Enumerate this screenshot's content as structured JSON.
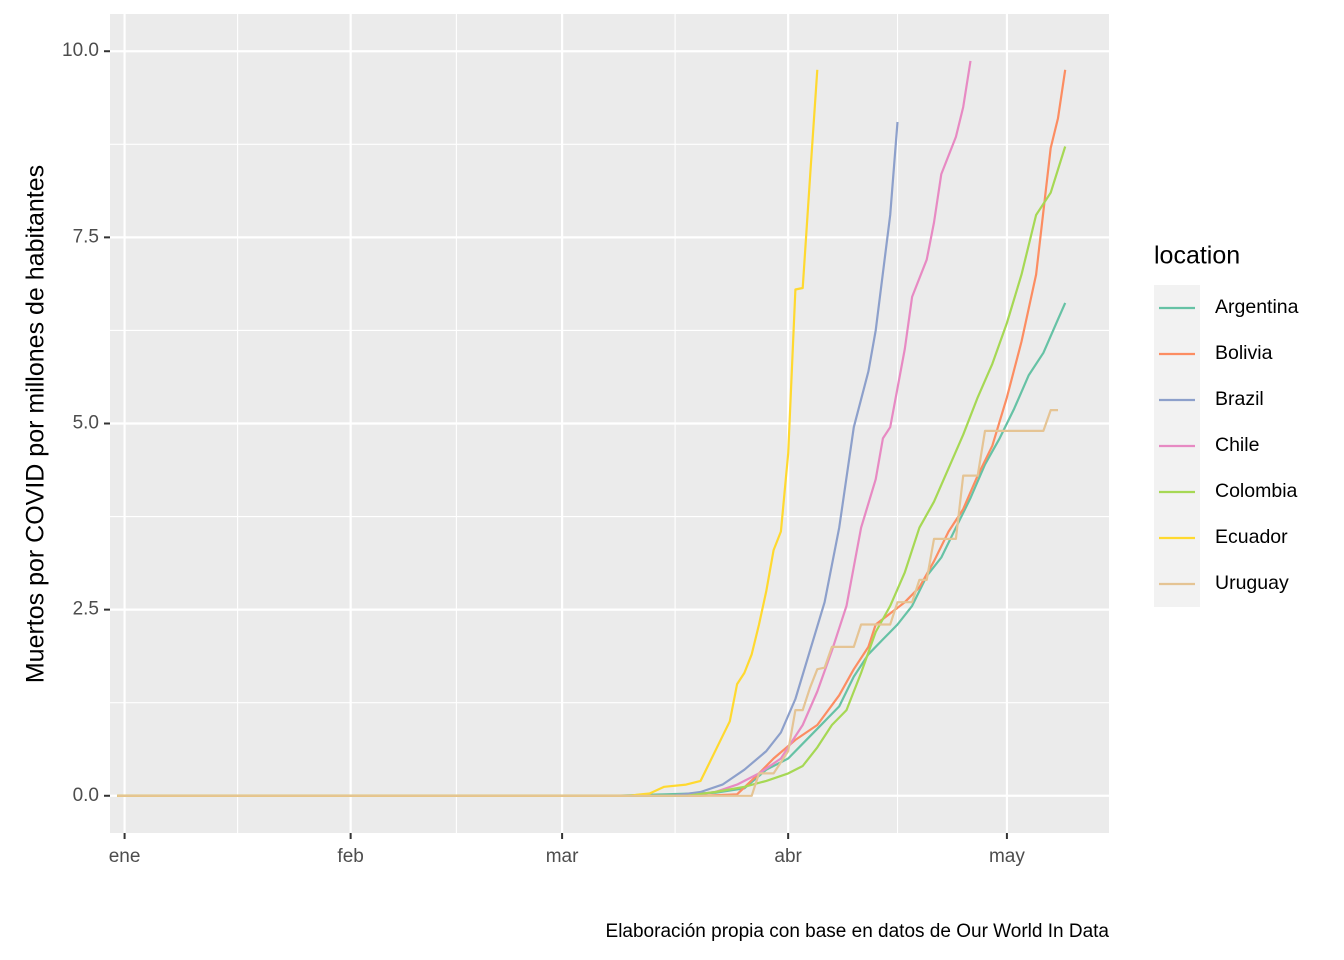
{
  "chart_data": {
    "type": "line",
    "title": "",
    "xlabel": "",
    "ylabel": "Muertos por COVID por millones de habitantes",
    "caption": "Elaboración propia con base en datos de Our World In Data",
    "legend_title": "location",
    "legend_position": "right",
    "grid": true,
    "x_tick_labels": [
      "ene",
      "feb",
      "mar",
      "abr",
      "may"
    ],
    "x_ticks": [
      "2020-01-01",
      "2020-02-01",
      "2020-03-01",
      "2020-04-01",
      "2020-05-01"
    ],
    "xlim": [
      "2019-12-30",
      "2020-05-15"
    ],
    "y_tick_labels": [
      "0.0",
      "2.5",
      "5.0",
      "7.5",
      "10.0"
    ],
    "y_ticks": [
      0,
      2.5,
      5,
      7.5,
      10
    ],
    "ylim": [
      -0.5,
      10.5
    ],
    "series": [
      {
        "name": "Argentina",
        "color": "#66c2a5",
        "points": [
          [
            "2019-12-31",
            0
          ],
          [
            "2020-03-08",
            0
          ],
          [
            "2020-03-15",
            0.02
          ],
          [
            "2020-03-22",
            0.04
          ],
          [
            "2020-03-26",
            0.1
          ],
          [
            "2020-03-29",
            0.35
          ],
          [
            "2020-04-01",
            0.5
          ],
          [
            "2020-04-03",
            0.7
          ],
          [
            "2020-04-05",
            0.9
          ],
          [
            "2020-04-08",
            1.2
          ],
          [
            "2020-04-10",
            1.6
          ],
          [
            "2020-04-12",
            1.9
          ],
          [
            "2020-04-14",
            2.1
          ],
          [
            "2020-04-16",
            2.3
          ],
          [
            "2020-04-18",
            2.55
          ],
          [
            "2020-04-20",
            2.95
          ],
          [
            "2020-04-22",
            3.2
          ],
          [
            "2020-04-24",
            3.6
          ],
          [
            "2020-04-26",
            4.0
          ],
          [
            "2020-04-28",
            4.45
          ],
          [
            "2020-04-30",
            4.8
          ],
          [
            "2020-05-02",
            5.2
          ],
          [
            "2020-05-04",
            5.65
          ],
          [
            "2020-05-06",
            5.95
          ],
          [
            "2020-05-08",
            6.4
          ],
          [
            "2020-05-09",
            6.62
          ]
        ]
      },
      {
        "name": "Bolivia",
        "color": "#fc8d62",
        "points": [
          [
            "2019-12-31",
            0
          ],
          [
            "2020-03-20",
            0
          ],
          [
            "2020-03-25",
            0.02
          ],
          [
            "2020-03-28",
            0.3
          ],
          [
            "2020-03-30",
            0.5
          ],
          [
            "2020-04-02",
            0.75
          ],
          [
            "2020-04-05",
            0.95
          ],
          [
            "2020-04-08",
            1.35
          ],
          [
            "2020-04-10",
            1.7
          ],
          [
            "2020-04-12",
            2.0
          ],
          [
            "2020-04-13",
            2.3
          ],
          [
            "2020-04-15",
            2.45
          ],
          [
            "2020-04-17",
            2.6
          ],
          [
            "2020-04-19",
            2.8
          ],
          [
            "2020-04-21",
            3.15
          ],
          [
            "2020-04-23",
            3.55
          ],
          [
            "2020-04-25",
            3.85
          ],
          [
            "2020-04-27",
            4.3
          ],
          [
            "2020-04-29",
            4.7
          ],
          [
            "2020-05-01",
            5.35
          ],
          [
            "2020-05-03",
            6.1
          ],
          [
            "2020-05-05",
            7.0
          ],
          [
            "2020-05-07",
            8.7
          ],
          [
            "2020-05-08",
            9.1
          ],
          [
            "2020-05-09",
            9.75
          ]
        ]
      },
      {
        "name": "Brazil",
        "color": "#8da0cb",
        "points": [
          [
            "2019-12-31",
            0
          ],
          [
            "2020-03-16",
            0
          ],
          [
            "2020-03-20",
            0.05
          ],
          [
            "2020-03-23",
            0.15
          ],
          [
            "2020-03-26",
            0.35
          ],
          [
            "2020-03-29",
            0.6
          ],
          [
            "2020-03-31",
            0.85
          ],
          [
            "2020-04-02",
            1.3
          ],
          [
            "2020-04-04",
            1.95
          ],
          [
            "2020-04-06",
            2.6
          ],
          [
            "2020-04-08",
            3.6
          ],
          [
            "2020-04-10",
            4.95
          ],
          [
            "2020-04-12",
            5.7
          ],
          [
            "2020-04-13",
            6.25
          ],
          [
            "2020-04-15",
            7.8
          ],
          [
            "2020-04-16",
            9.05
          ]
        ]
      },
      {
        "name": "Chile",
        "color": "#e78ac3",
        "points": [
          [
            "2019-12-31",
            0
          ],
          [
            "2020-03-18",
            0
          ],
          [
            "2020-03-22",
            0.05
          ],
          [
            "2020-03-25",
            0.15
          ],
          [
            "2020-03-28",
            0.3
          ],
          [
            "2020-03-31",
            0.5
          ],
          [
            "2020-04-03",
            0.95
          ],
          [
            "2020-04-05",
            1.4
          ],
          [
            "2020-04-07",
            1.95
          ],
          [
            "2020-04-09",
            2.55
          ],
          [
            "2020-04-11",
            3.6
          ],
          [
            "2020-04-13",
            4.25
          ],
          [
            "2020-04-14",
            4.8
          ],
          [
            "2020-04-15",
            4.95
          ],
          [
            "2020-04-17",
            6.0
          ],
          [
            "2020-04-18",
            6.7
          ],
          [
            "2020-04-20",
            7.2
          ],
          [
            "2020-04-21",
            7.7
          ],
          [
            "2020-04-22",
            8.35
          ],
          [
            "2020-04-24",
            8.85
          ],
          [
            "2020-04-25",
            9.25
          ],
          [
            "2020-04-26",
            9.87
          ]
        ]
      },
      {
        "name": "Colombia",
        "color": "#a6d854",
        "points": [
          [
            "2019-12-31",
            0
          ],
          [
            "2020-03-18",
            0
          ],
          [
            "2020-03-22",
            0.05
          ],
          [
            "2020-03-26",
            0.12
          ],
          [
            "2020-03-29",
            0.2
          ],
          [
            "2020-04-01",
            0.3
          ],
          [
            "2020-04-03",
            0.4
          ],
          [
            "2020-04-05",
            0.65
          ],
          [
            "2020-04-07",
            0.95
          ],
          [
            "2020-04-09",
            1.15
          ],
          [
            "2020-04-11",
            1.65
          ],
          [
            "2020-04-13",
            2.2
          ],
          [
            "2020-04-15",
            2.55
          ],
          [
            "2020-04-17",
            3.0
          ],
          [
            "2020-04-19",
            3.6
          ],
          [
            "2020-04-21",
            3.95
          ],
          [
            "2020-04-23",
            4.4
          ],
          [
            "2020-04-25",
            4.85
          ],
          [
            "2020-04-27",
            5.35
          ],
          [
            "2020-04-29",
            5.8
          ],
          [
            "2020-05-01",
            6.35
          ],
          [
            "2020-05-03",
            7.0
          ],
          [
            "2020-05-05",
            7.8
          ],
          [
            "2020-05-07",
            8.1
          ],
          [
            "2020-05-09",
            8.72
          ]
        ]
      },
      {
        "name": "Ecuador",
        "color": "#ffd92f",
        "points": [
          [
            "2019-12-31",
            0
          ],
          [
            "2020-03-10",
            0
          ],
          [
            "2020-03-13",
            0.03
          ],
          [
            "2020-03-15",
            0.12
          ],
          [
            "2020-03-18",
            0.15
          ],
          [
            "2020-03-20",
            0.2
          ],
          [
            "2020-03-21",
            0.4
          ],
          [
            "2020-03-23",
            0.8
          ],
          [
            "2020-03-24",
            1.0
          ],
          [
            "2020-03-25",
            1.5
          ],
          [
            "2020-03-26",
            1.65
          ],
          [
            "2020-03-27",
            1.9
          ],
          [
            "2020-03-28",
            2.3
          ],
          [
            "2020-03-29",
            2.75
          ],
          [
            "2020-03-30",
            3.3
          ],
          [
            "2020-03-31",
            3.55
          ],
          [
            "2020-04-01",
            4.6
          ],
          [
            "2020-04-02",
            6.8
          ],
          [
            "2020-04-03",
            6.82
          ],
          [
            "2020-04-04",
            8.3
          ],
          [
            "2020-04-05",
            9.75
          ]
        ]
      },
      {
        "name": "Uruguay",
        "color": "#e5c494",
        "points": [
          [
            "2019-12-31",
            0
          ],
          [
            "2020-03-27",
            0
          ],
          [
            "2020-03-28",
            0.3
          ],
          [
            "2020-03-30",
            0.3
          ],
          [
            "2020-04-01",
            0.6
          ],
          [
            "2020-04-02",
            1.15
          ],
          [
            "2020-04-03",
            1.15
          ],
          [
            "2020-04-04",
            1.45
          ],
          [
            "2020-04-05",
            1.7
          ],
          [
            "2020-04-06",
            1.72
          ],
          [
            "2020-04-07",
            2.0
          ],
          [
            "2020-04-10",
            2.0
          ],
          [
            "2020-04-11",
            2.3
          ],
          [
            "2020-04-15",
            2.3
          ],
          [
            "2020-04-16",
            2.6
          ],
          [
            "2020-04-18",
            2.6
          ],
          [
            "2020-04-19",
            2.9
          ],
          [
            "2020-04-20",
            2.9
          ],
          [
            "2020-04-21",
            3.45
          ],
          [
            "2020-04-24",
            3.45
          ],
          [
            "2020-04-25",
            4.3
          ],
          [
            "2020-04-27",
            4.3
          ],
          [
            "2020-04-28",
            4.9
          ],
          [
            "2020-05-06",
            4.9
          ],
          [
            "2020-05-07",
            5.18
          ],
          [
            "2020-05-08",
            5.18
          ]
        ]
      }
    ]
  }
}
